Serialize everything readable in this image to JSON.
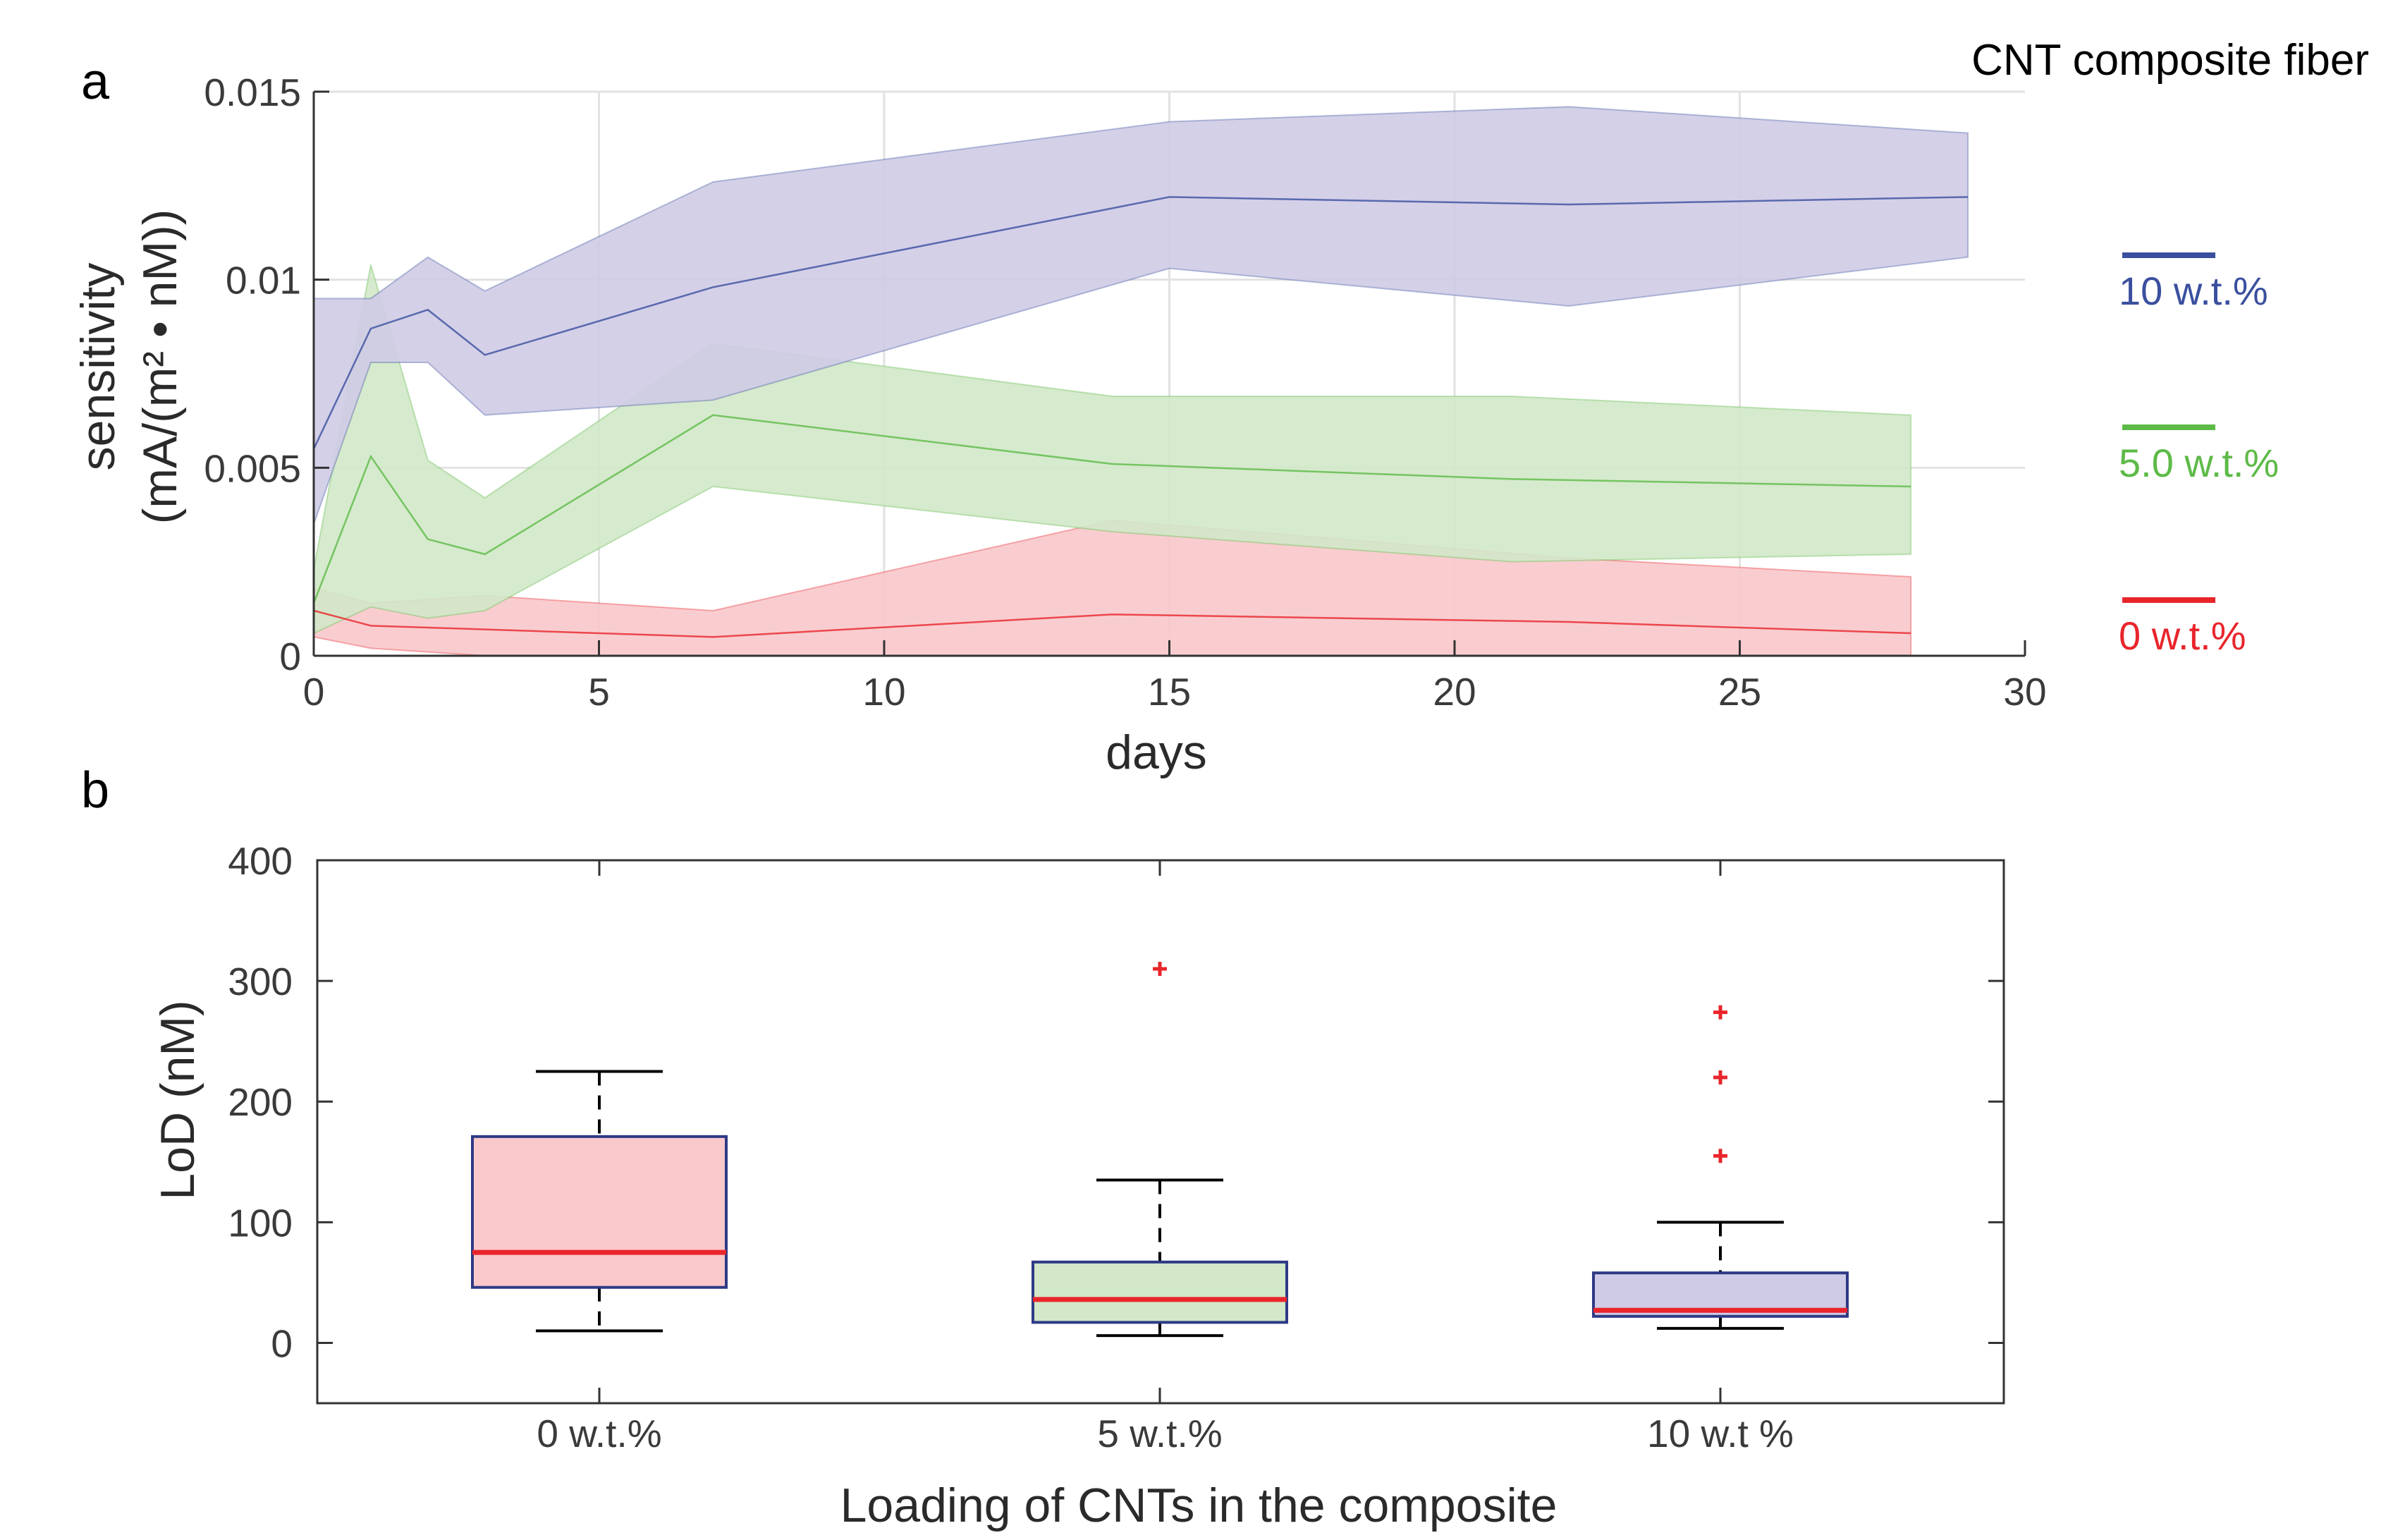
{
  "figure_title": "CNT composite fiber",
  "chart_data": [
    {
      "type": "line",
      "panel": "a",
      "xlabel": "days",
      "ylabel_line1": "sensitivity",
      "ylabel_line2": "(mA/(m² • nM))",
      "xlim": [
        0,
        30
      ],
      "ylim": [
        0,
        0.015
      ],
      "xticks": [
        0,
        5,
        10,
        15,
        20,
        25,
        30
      ],
      "xtick_labels": [
        "0",
        "5",
        "10",
        "15",
        "20",
        "25",
        "30"
      ],
      "yticks": [
        0,
        0.005,
        0.01,
        0.015
      ],
      "ytick_labels": [
        "0",
        "0.005",
        "0.01",
        "0.015"
      ],
      "grid": true,
      "legend_position": "right",
      "series": [
        {
          "name": "0 w.t.%",
          "color": "#e8252b",
          "fill": "#f8c8cb",
          "x": [
            0,
            1,
            3,
            7,
            14,
            22,
            28
          ],
          "mean": [
            0.0012,
            0.0008,
            0.0007,
            0.0005,
            0.0011,
            0.0009,
            0.0006
          ],
          "upper": [
            0.0018,
            0.0014,
            0.0016,
            0.0012,
            0.0036,
            0.0026,
            0.0021
          ],
          "lower": [
            0.0005,
            0.0002,
            0.0,
            0.0,
            0.0,
            0.0,
            0.0
          ]
        },
        {
          "name": "5.0 w.t.%",
          "color": "#5dba47",
          "fill": "#d2e8c8",
          "x": [
            0,
            1,
            2,
            3,
            7,
            14,
            21,
            28
          ],
          "mean": [
            0.0014,
            0.0053,
            0.0031,
            0.0027,
            0.0064,
            0.0051,
            0.0047,
            0.0045
          ],
          "upper": [
            0.0023,
            0.0104,
            0.0052,
            0.0042,
            0.0083,
            0.0069,
            0.0069,
            0.0064
          ],
          "lower": [
            0.0006,
            0.0013,
            0.001,
            0.0012,
            0.0045,
            0.0033,
            0.0025,
            0.0027
          ]
        },
        {
          "name": "10 w.t.%",
          "color": "#3a4f9e",
          "fill": "#cfcbe6",
          "x": [
            0,
            1,
            2,
            3,
            7,
            15,
            22,
            29
          ],
          "mean": [
            0.0055,
            0.0087,
            0.0092,
            0.008,
            0.0098,
            0.0122,
            0.012,
            0.0122
          ],
          "upper": [
            0.0095,
            0.0095,
            0.0106,
            0.0097,
            0.0126,
            0.0142,
            0.0146,
            0.0139
          ],
          "lower": [
            0.0035,
            0.0078,
            0.0078,
            0.0064,
            0.0068,
            0.0103,
            0.0093,
            0.0106
          ]
        }
      ]
    },
    {
      "type": "box",
      "panel": "b",
      "xlabel": "Loading of CNTs in the composite",
      "ylabel": "LoD (nM)",
      "ylim": [
        -50,
        400
      ],
      "yticks": [
        0,
        100,
        200,
        300,
        400
      ],
      "ytick_labels": [
        "0",
        "100",
        "200",
        "300",
        "400"
      ],
      "categories": [
        "0 w.t.%",
        "5 w.t.%",
        "10 w.t %"
      ],
      "boxes": [
        {
          "min": 10,
          "q1": 46,
          "median": 75,
          "q3": 171,
          "max": 225,
          "outliers": [],
          "fill": "#f8c8cb"
        },
        {
          "min": 6,
          "q1": 17,
          "median": 36,
          "q3": 67,
          "max": 135,
          "outliers": [
            310
          ],
          "fill": "#d2e8c8"
        },
        {
          "min": 12,
          "q1": 22,
          "median": 27,
          "q3": 58,
          "max": 100,
          "outliers": [
            155,
            220,
            274
          ],
          "fill": "#cfcbe6"
        }
      ],
      "box_edge_color": "#2e3a85",
      "median_color": "#e8252b",
      "outlier_color": "#e8252b"
    }
  ]
}
